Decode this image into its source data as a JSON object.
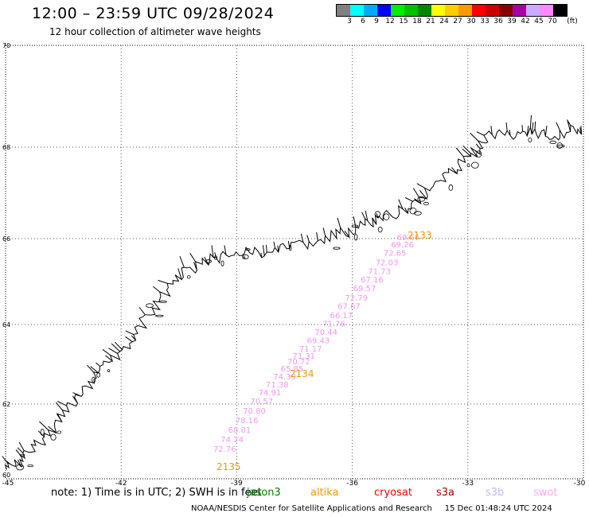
{
  "header": {
    "title": "12:00 – 23:59 UTC 09/28/2024",
    "subtitle": "12 hour collection of altimeter wave heights"
  },
  "legend": {
    "unit": "(ft)",
    "bins": [
      {
        "color": "#808080",
        "label": "3"
      },
      {
        "color": "#00ffff",
        "label": "6"
      },
      {
        "color": "#00aaff",
        "label": "9"
      },
      {
        "color": "#0000ff",
        "label": "12"
      },
      {
        "color": "#00ee00",
        "label": "15"
      },
      {
        "color": "#00c000",
        "label": "18"
      },
      {
        "color": "#008800",
        "label": "21"
      },
      {
        "color": "#ffff00",
        "label": "24"
      },
      {
        "color": "#ffcc00",
        "label": "27"
      },
      {
        "color": "#ff9900",
        "label": "30"
      },
      {
        "color": "#ff0000",
        "label": "33"
      },
      {
        "color": "#cc0000",
        "label": "36"
      },
      {
        "color": "#880000",
        "label": "39"
      },
      {
        "color": "#aa00aa",
        "label": "42"
      },
      {
        "color": "#ccaaff",
        "label": "45"
      },
      {
        "color": "#ff88ff",
        "label": "70"
      },
      {
        "color": "#000000",
        "label": ""
      }
    ]
  },
  "map": {
    "lon_range": [
      -45,
      -30
    ],
    "lat_range": [
      61.8,
      70
    ],
    "lon_ticks": [
      "-45",
      "-42",
      "-39",
      "-36",
      "-33",
      "-30"
    ],
    "lat_ticks": [
      "70",
      "68",
      "66",
      "64",
      "62",
      "60"
    ],
    "grid_lons": [
      -42,
      -39,
      -36,
      -33
    ],
    "grid_lats": [
      68,
      66,
      64,
      62
    ],
    "coast_color": "#000000",
    "track_color": "#ee99ee",
    "time_color": "#ee9900",
    "track_values": [
      {
        "lat": 65.96,
        "value": "69.66"
      },
      {
        "lat": 65.8,
        "value": "69.26"
      },
      {
        "lat": 65.6,
        "value": "72.65"
      },
      {
        "lat": 65.38,
        "value": "72.03"
      },
      {
        "lat": 65.18,
        "value": "71.73"
      },
      {
        "lat": 64.98,
        "value": "67.16"
      },
      {
        "lat": 64.78,
        "value": "69.57"
      },
      {
        "lat": 64.56,
        "value": "72.79"
      },
      {
        "lat": 64.36,
        "value": "67.67"
      },
      {
        "lat": 64.15,
        "value": "66.17"
      },
      {
        "lat": 63.95,
        "value": "71.76"
      },
      {
        "lat": 63.74,
        "value": "70.44"
      },
      {
        "lat": 63.53,
        "value": "69.43"
      },
      {
        "lat": 63.32,
        "value": "71.17"
      },
      {
        "lat": 63.14,
        "value": "71.31"
      },
      {
        "lat": 63.0,
        "value": "70.72"
      },
      {
        "lat": 62.82,
        "value": "65.85"
      },
      {
        "lat": 62.62,
        "value": "74.39"
      },
      {
        "lat": 62.42,
        "value": "71.38"
      },
      {
        "lat": 62.22,
        "value": "74.91"
      },
      {
        "lat": 62.0,
        "value": "70.57"
      },
      {
        "lat": 61.8,
        "value": "70.80"
      },
      {
        "lat": 61.6,
        "value": "78.16"
      },
      {
        "lat": 61.4,
        "value": "68.01"
      },
      {
        "lat": 61.2,
        "value": "74.24"
      },
      {
        "lat": 61.0,
        "value": "72.76"
      }
    ],
    "time_labels": [
      {
        "text": "2133"
      },
      {
        "text": "2134"
      },
      {
        "text": "2135"
      }
    ]
  },
  "footer": {
    "note": "note: 1) Time is in UTC; 2) SWH is in feet",
    "satellites": [
      {
        "name": "jason3",
        "color": "#008800"
      },
      {
        "name": "altika",
        "color": "#ff9900"
      },
      {
        "name": "cryosat",
        "color": "#ff0000"
      },
      {
        "name": "s3a",
        "color": "#aa0000"
      },
      {
        "name": "s3b",
        "color": "#bbbbff"
      },
      {
        "name": "swot",
        "color": "#ffaaee"
      }
    ],
    "credit": "NOAA/NESDIS Center for Satellite Applications and Research",
    "timestamp": "15 Dec 01:48:24 UTC 2024"
  }
}
